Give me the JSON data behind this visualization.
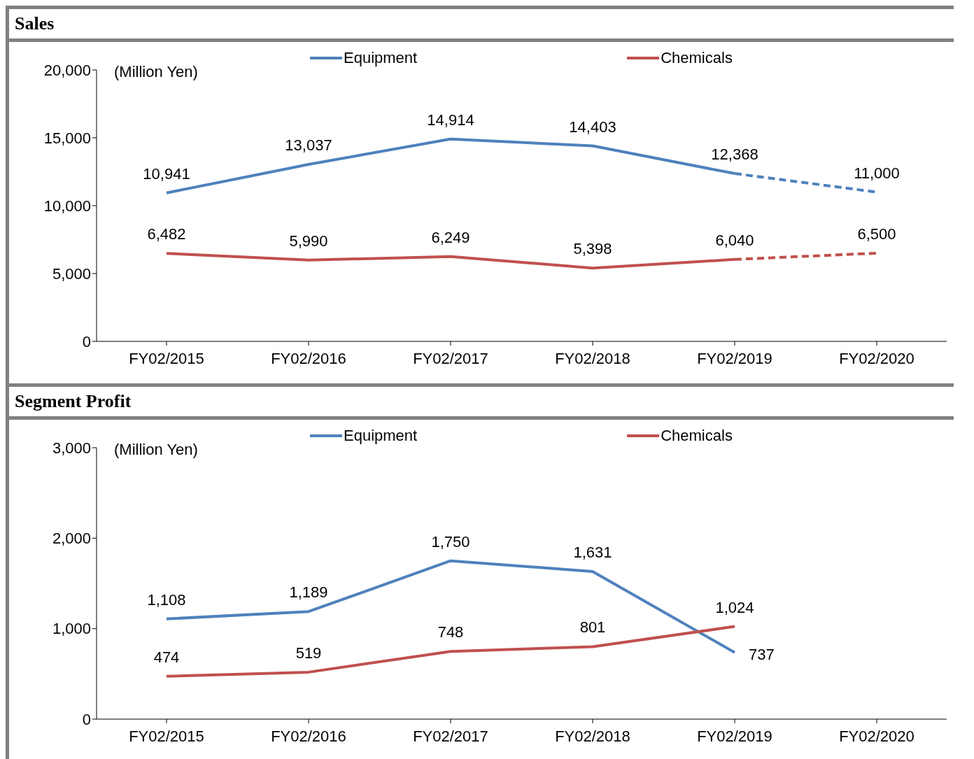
{
  "chart_data": [
    {
      "type": "line",
      "title": "Sales",
      "annotations": [
        "(Million Yen)"
      ],
      "categories": [
        "FY02/2015",
        "FY02/2016",
        "FY02/2017",
        "FY02/2018",
        "FY02/2019",
        "FY02/2020"
      ],
      "series": [
        {
          "name": "Equipment",
          "color": "#4f81bd",
          "line_style": "solid",
          "values": [
            10941,
            13037,
            14914,
            14403,
            12368,
            null
          ],
          "value_labels": [
            "10,941",
            "13,037",
            "14,914",
            "14,403",
            "12,368",
            null
          ]
        },
        {
          "name": "Chemicals",
          "color": "#c0504d",
          "line_style": "solid",
          "values": [
            6482,
            5990,
            6249,
            5398,
            6040,
            null
          ],
          "value_labels": [
            "6,482",
            "5,990",
            "6,249",
            "5,398",
            "6,040",
            null
          ]
        },
        {
          "color": "#4f81bd",
          "line_style": "dashed",
          "values": [
            null,
            null,
            null,
            null,
            12368,
            11000
          ],
          "value_labels": [
            null,
            null,
            null,
            null,
            null,
            "11,000"
          ]
        },
        {
          "color": "#c0504d",
          "line_style": "dashed",
          "values": [
            null,
            null,
            null,
            null,
            6040,
            6500
          ],
          "value_labels": [
            null,
            null,
            null,
            null,
            null,
            "6,500"
          ]
        }
      ],
      "ylim": [
        0,
        20000
      ],
      "yticks": [
        0,
        {
          "value": 5000,
          "label": "5,000"
        },
        {
          "value": 10000,
          "label": "10,000"
        },
        {
          "value": 15000,
          "label": "15,000"
        },
        {
          "value": 20000,
          "label": "20,000"
        }
      ],
      "grid": false,
      "legend": "top",
      "marker": "none"
    },
    {
      "type": "line",
      "title": "Segment Profit",
      "annotations": [
        "(Million Yen)"
      ],
      "categories": [
        "FY02/2015",
        "FY02/2016",
        "FY02/2017",
        "FY02/2018",
        "FY02/2019",
        "FY02/2020"
      ],
      "series": [
        {
          "name": "Equipment",
          "color": "#4f81bd",
          "line_style": "solid",
          "values": [
            1108,
            1189,
            1750,
            1631,
            737,
            null
          ],
          "value_labels": [
            "1,108",
            "1,189",
            "1,750",
            "1,631",
            "737",
            null
          ]
        },
        {
          "name": "Chemicals",
          "color": "#c0504d",
          "line_style": "solid",
          "values": [
            474,
            519,
            748,
            801,
            1024,
            null
          ],
          "value_labels": [
            "474",
            "519",
            "748",
            "801",
            "1,024",
            null
          ]
        }
      ],
      "ylim": [
        0,
        3000
      ],
      "yticks": [
        0,
        {
          "value": 1000,
          "label": "1,000"
        },
        {
          "value": 2000,
          "label": "2,000"
        },
        {
          "value": 3000,
          "label": "3,000"
        }
      ],
      "grid": false,
      "legend": "top",
      "marker": "none"
    }
  ]
}
